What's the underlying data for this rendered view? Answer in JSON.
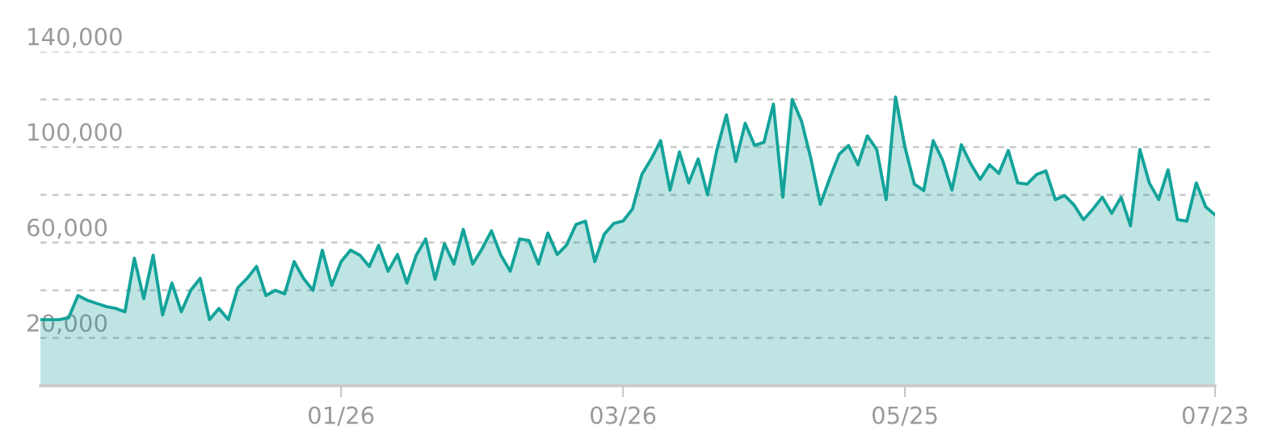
{
  "chart_data": {
    "type": "area",
    "categories": [
      null,
      null,
      null,
      null,
      null,
      null,
      null,
      null,
      null,
      null,
      null,
      null,
      null,
      null,
      null,
      null,
      null,
      null,
      null,
      null,
      null,
      null,
      null,
      null,
      null,
      null,
      null,
      null,
      null,
      null,
      null,
      null,
      "01/26",
      null,
      null,
      null,
      null,
      null,
      null,
      null,
      null,
      null,
      null,
      null,
      null,
      null,
      null,
      null,
      null,
      null,
      null,
      null,
      null,
      null,
      null,
      null,
      null,
      null,
      null,
      null,
      null,
      null,
      "03/26",
      null,
      null,
      null,
      null,
      null,
      null,
      null,
      null,
      null,
      null,
      null,
      null,
      null,
      null,
      null,
      null,
      null,
      null,
      null,
      null,
      null,
      null,
      null,
      null,
      null,
      null,
      null,
      null,
      null,
      "05/25",
      null,
      null,
      null,
      null,
      null,
      null,
      null,
      null,
      null,
      null,
      null,
      null,
      null,
      null,
      null,
      null,
      null,
      null,
      null,
      null,
      null,
      null,
      null,
      null,
      null,
      null,
      null,
      null,
      null,
      null,
      null,
      null,
      "07/23"
    ],
    "series": [
      {
        "color": "#14a39a",
        "values": [
          27700,
          27700,
          27700,
          28500,
          37800,
          35800,
          34500,
          33200,
          32400,
          31000,
          53400,
          36500,
          54700,
          29700,
          43000,
          31000,
          40000,
          45000,
          27700,
          32400,
          27700,
          41000,
          45000,
          50000,
          37800,
          40000,
          38500,
          52000,
          45000,
          40000,
          56800,
          42000,
          52000,
          56800,
          54700,
          50000,
          58800,
          48000,
          55000,
          43000,
          54700,
          61500,
          44600,
          59500,
          51000,
          65500,
          51000,
          57400,
          64900,
          54700,
          48000,
          61500,
          60800,
          51000,
          64000,
          55000,
          59000,
          67600,
          69000,
          52000,
          63500,
          68000,
          69000,
          74000,
          88500,
          95000,
          102700,
          82000,
          98000,
          85000,
          95000,
          80000,
          99000,
          113500,
          94000,
          110000,
          100700,
          102000,
          118000,
          79000,
          120000,
          110800,
          95000,
          76000,
          87000,
          97000,
          100700,
          92600,
          104700,
          99000,
          78000,
          121000,
          100000,
          84500,
          81800,
          102700,
          94600,
          82000,
          101000,
          93000,
          86500,
          92600,
          89000,
          98600,
          85000,
          84500,
          88500,
          90000,
          78000,
          79700,
          75700,
          69600,
          74000,
          79000,
          72300,
          79000,
          67000,
          99000,
          85000,
          78000,
          90500,
          69600,
          69000,
          85000,
          75000,
          71600
        ]
      }
    ],
    "ylim": [
      0,
      140000
    ],
    "yticks": [
      {
        "value": 20000,
        "label": "20,000"
      },
      {
        "value": 40000,
        "label": null
      },
      {
        "value": 60000,
        "label": "60,000"
      },
      {
        "value": 80000,
        "label": null
      },
      {
        "value": 100000,
        "label": "100,000"
      },
      {
        "value": 120000,
        "label": null
      },
      {
        "value": 140000,
        "label": "140,000"
      }
    ],
    "grid": "y"
  }
}
